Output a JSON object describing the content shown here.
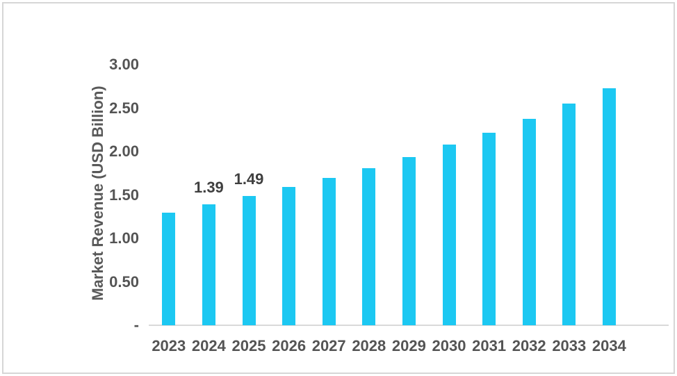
{
  "colors": {
    "bar": "#1cc8f2",
    "axis_line": "#d9d9d9",
    "tick_text": "#545454",
    "data_label_text": "#3f3f3f",
    "axis_title_text": "#595959",
    "frame_border": "#d6d6d6",
    "background": "#ffffff"
  },
  "chart_data": {
    "type": "bar",
    "title": "",
    "xlabel": "",
    "ylabel": "Market Revenue (USD Billion)",
    "categories": [
      "2023",
      "2024",
      "2025",
      "2026",
      "2027",
      "2028",
      "2029",
      "2030",
      "2031",
      "2032",
      "2033",
      "2034"
    ],
    "series": [
      {
        "name": "Market Revenue (USD Billion)",
        "values": [
          1.3,
          1.39,
          1.49,
          1.59,
          1.7,
          1.81,
          1.94,
          2.08,
          2.22,
          2.38,
          2.55,
          2.73
        ]
      }
    ],
    "data_labels": [
      {
        "index": 1,
        "text": "1.39"
      },
      {
        "index": 2,
        "text": "1.49"
      }
    ],
    "ylim": [
      0,
      3.0
    ],
    "y_ticks": [
      {
        "label": "3.00",
        "value": 3.0
      },
      {
        "label": "2.50",
        "value": 2.5
      },
      {
        "label": "2.00",
        "value": 2.0
      },
      {
        "label": "1.50",
        "value": 1.5
      },
      {
        "label": "1.00",
        "value": 1.0
      },
      {
        "label": "0.50",
        "value": 0.5
      },
      {
        "label": "-",
        "value": 0.0
      }
    ],
    "grid": "off",
    "legend": "none"
  }
}
